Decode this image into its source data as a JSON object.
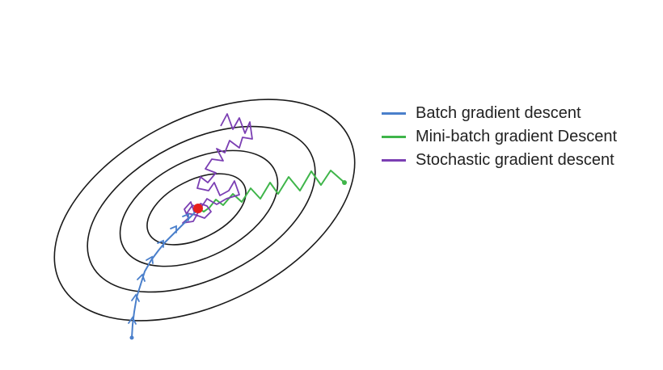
{
  "colors": {
    "batch": "#4a7fcb",
    "minibatch": "#3fb54a",
    "stochastic": "#7b3fb3",
    "minimum": "#e8201c",
    "contour": "#1a1a1a"
  },
  "legend": [
    {
      "label": "Batch gradient descent",
      "color": "#4a7fcb"
    },
    {
      "label": "Mini-batch gradient Descent",
      "color": "#3fb54a"
    },
    {
      "label": "Stochastic gradient descent",
      "color": "#7b3fb3"
    }
  ]
}
